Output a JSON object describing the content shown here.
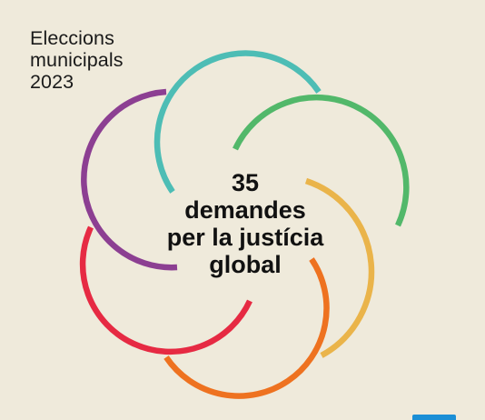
{
  "kicker": {
    "line1": "Eleccions",
    "line2": "municipals",
    "line3": "2023"
  },
  "headline": {
    "line1": "35",
    "line2": "demandes",
    "line3": "per la justícia",
    "line4": "global"
  },
  "colors": {
    "background": "#efeadb",
    "text": "#111111",
    "ring_teal": "#4dbdb5",
    "ring_green": "#52b86a",
    "ring_yellow": "#eab44a",
    "ring_orange": "#ee7220",
    "ring_red": "#e62a43",
    "ring_purple": "#8c3f92",
    "corner_badge": "#1b8fd6"
  }
}
